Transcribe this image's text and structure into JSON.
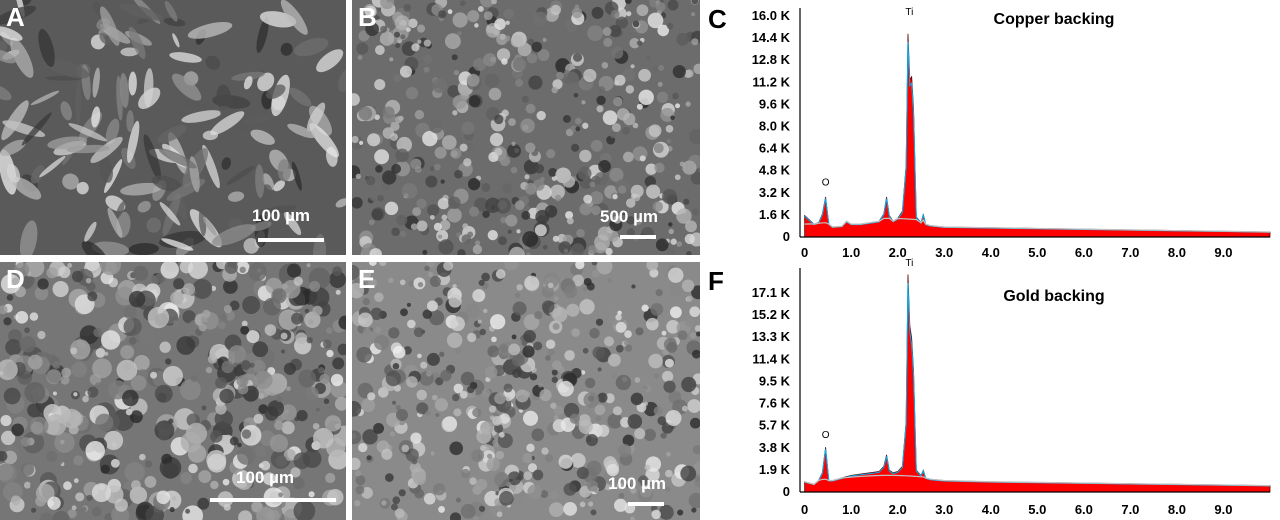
{
  "micrographs": [
    {
      "letter": "A",
      "scale_label": "100 µm",
      "fill": "#5a5a5a"
    },
    {
      "letter": "B",
      "scale_label": "500 µm",
      "fill": "#6c6c6c"
    },
    {
      "letter": "D",
      "scale_label": "100 µm",
      "fill": "#767676"
    },
    {
      "letter": "E",
      "scale_label": "100 µm",
      "fill": "#8a8a8a"
    }
  ],
  "chart_data": [
    {
      "panel_letter": "C",
      "type": "area",
      "title": "Copper backing",
      "fill_color": "#ff0000",
      "line_color": "#00b0f0",
      "x_ticks": [
        "0",
        "1.0",
        "2.0",
        "3.0",
        "4.0",
        "5.0",
        "6.0",
        "7.0",
        "8.0",
        "9.0"
      ],
      "y_ticks": [
        "0",
        "1.6 K",
        "3.2 K",
        "4.8 K",
        "6.4 K",
        "8.0 K",
        "9.6 K",
        "11.2 K",
        "12.8 K",
        "14.4 K",
        "16.0 K"
      ],
      "xlim": [
        -0.1,
        10.0
      ],
      "ylim": [
        0,
        16000
      ],
      "peak_labels": [
        {
          "label": "O",
          "x": 0.45,
          "y": 3600
        },
        {
          "label": "Ti",
          "x": 2.25,
          "y": 15500
        }
      ],
      "x": [
        0.0,
        0.1,
        0.2,
        0.3,
        0.38,
        0.45,
        0.52,
        0.6,
        0.8,
        0.9,
        1.0,
        1.2,
        1.4,
        1.6,
        1.7,
        1.76,
        1.82,
        1.9,
        2.0,
        2.1,
        2.18,
        2.22,
        2.26,
        2.3,
        2.34,
        2.4,
        2.5,
        2.55,
        2.6,
        2.7,
        3.0,
        4.0,
        5.0,
        6.0,
        7.0,
        8.0,
        9.0,
        10.0
      ],
      "y": [
        1500,
        1200,
        900,
        1000,
        1600,
        2800,
        900,
        700,
        750,
        1100,
        900,
        900,
        1000,
        1100,
        1600,
        2800,
        1500,
        1100,
        1300,
        1800,
        5000,
        14200,
        11000,
        11200,
        9000,
        1400,
        1000,
        1600,
        900,
        800,
        700,
        650,
        600,
        550,
        500,
        450,
        400,
        350
      ]
    },
    {
      "panel_letter": "F",
      "type": "area",
      "title": "Gold backing",
      "fill_color": "#ff0000",
      "line_color": "#00b0f0",
      "x_ticks": [
        "0",
        "1.0",
        "2.0",
        "3.0",
        "4.0",
        "5.0",
        "6.0",
        "7.0",
        "8.0",
        "9.0"
      ],
      "y_ticks": [
        "0",
        "1.9 K",
        "3.8 K",
        "5.7 K",
        "7.6 K",
        "9.5 K",
        "11.4 K",
        "13.3 K",
        "15.2 K",
        "17.1 K"
      ],
      "xlim": [
        -0.1,
        10.0
      ],
      "ylim": [
        0,
        17500
      ],
      "peak_labels": [
        {
          "label": "O",
          "x": 0.45,
          "y": 4200
        },
        {
          "label": "Ti",
          "x": 2.25,
          "y": 18500
        }
      ],
      "x": [
        0.0,
        0.1,
        0.2,
        0.3,
        0.38,
        0.45,
        0.52,
        0.6,
        0.8,
        1.0,
        1.2,
        1.4,
        1.6,
        1.7,
        1.76,
        1.82,
        1.9,
        2.0,
        2.1,
        2.18,
        2.22,
        2.26,
        2.3,
        2.34,
        2.4,
        2.5,
        2.55,
        2.6,
        2.7,
        3.0,
        4.0,
        5.0,
        6.0,
        7.0,
        8.0,
        9.0,
        10.0
      ],
      "y": [
        800,
        700,
        600,
        900,
        1500,
        3500,
        900,
        900,
        1100,
        1300,
        1400,
        1500,
        1600,
        2000,
        2900,
        1700,
        1500,
        1600,
        2000,
        5500,
        17000,
        13000,
        12000,
        9500,
        1700,
        1300,
        1700,
        1100,
        1000,
        900,
        800,
        750,
        700,
        650,
        600,
        550,
        500
      ]
    }
  ]
}
